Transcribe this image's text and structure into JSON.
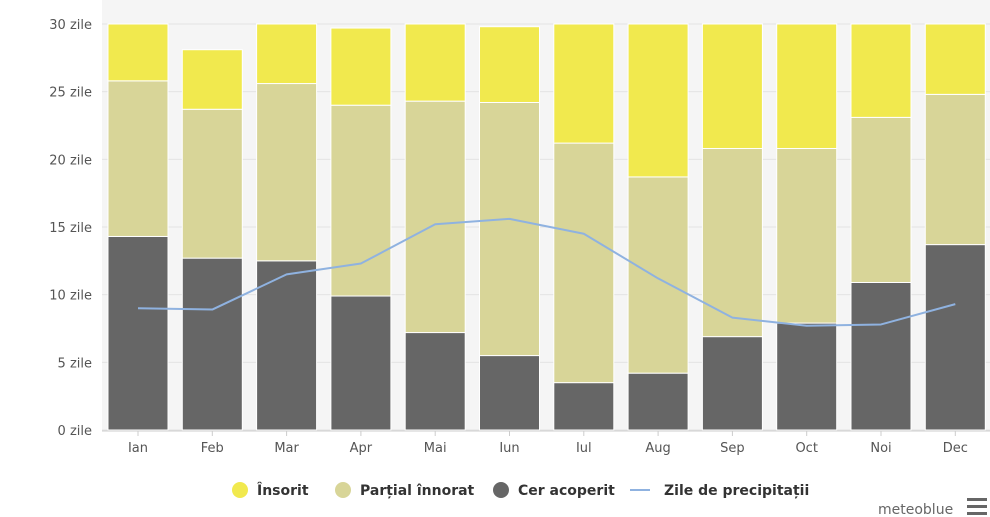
{
  "chart_data": {
    "type": "bar",
    "stacked": true,
    "categories": [
      "Ian",
      "Feb",
      "Mar",
      "Apr",
      "Mai",
      "Iun",
      "Iul",
      "Aug",
      "Sep",
      "Oct",
      "Noi",
      "Dec"
    ],
    "y_ticks": [
      "0 zile",
      "5 zile",
      "10 zile",
      "15 zile",
      "20 zile",
      "25 zile",
      "30 zile"
    ],
    "ylim": [
      0,
      30
    ],
    "series": [
      {
        "name": "Cer acoperit",
        "color": "#666666",
        "values": [
          14.3,
          12.7,
          12.5,
          9.9,
          7.2,
          5.5,
          3.5,
          4.2,
          6.9,
          7.9,
          10.9,
          13.7
        ]
      },
      {
        "name": "Parțial înnorat",
        "color": "#d8d598",
        "values": [
          11.5,
          11.0,
          13.1,
          14.1,
          17.1,
          18.7,
          17.7,
          14.5,
          13.9,
          12.9,
          12.2,
          11.1
        ]
      },
      {
        "name": "Însorit",
        "color": "#f1e94e",
        "values": [
          5.2,
          4.4,
          5.4,
          5.7,
          6.7,
          5.6,
          9.8,
          12.3,
          9.2,
          10.2,
          7.9,
          6.2
        ]
      }
    ],
    "line_series": {
      "name": "Zile de precipitații",
      "color": "#8fb2e0",
      "values": [
        9.0,
        8.9,
        11.5,
        12.3,
        15.2,
        15.6,
        14.5,
        11.2,
        8.3,
        7.7,
        7.8,
        9.3
      ]
    },
    "legend": [
      "Însorit",
      "Parțial înnorat",
      "Cer acoperit",
      "Zile de precipitații"
    ],
    "legend_position": "bottom",
    "grid": true,
    "plot_background": "#f5f5f5"
  },
  "branding": {
    "label": "meteoblue"
  },
  "menu_icon": "menu-icon"
}
